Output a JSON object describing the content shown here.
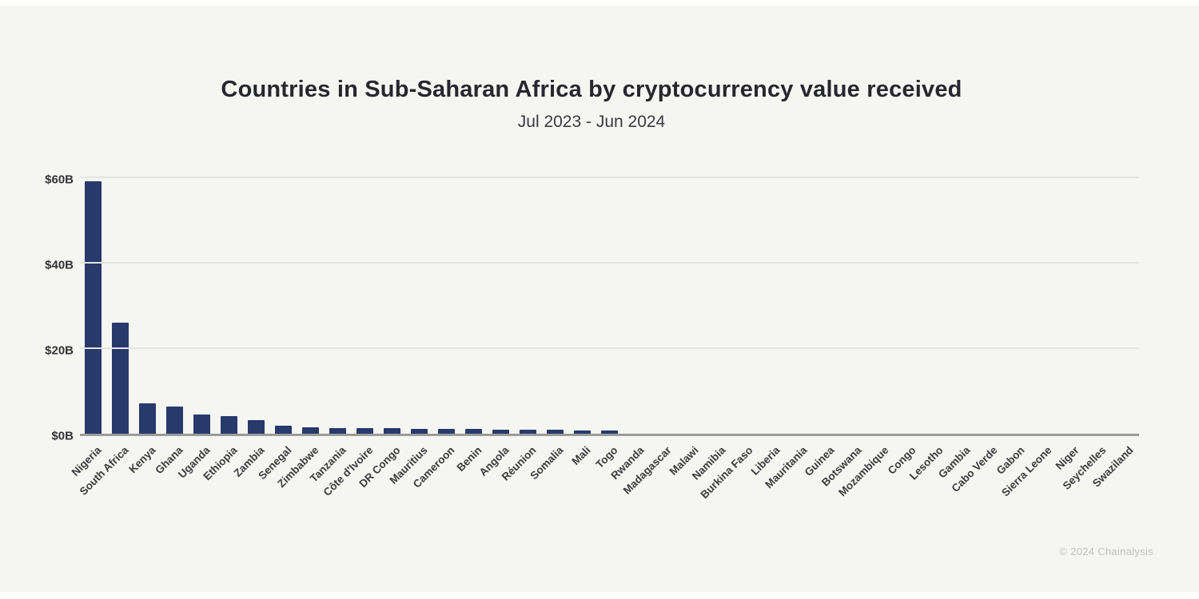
{
  "page": {
    "background": "#f5f5f2"
  },
  "header": {
    "title": "Countries in Sub-Saharan Africa by cryptocurrency value received",
    "subtitle": "Jul 2023 - Jun 2024"
  },
  "footer": {
    "credit": "© 2024 Chainalysis"
  },
  "chart_data": {
    "type": "bar",
    "title": "Countries in Sub-Saharan Africa by cryptocurrency value received",
    "subtitle": "Jul 2023 - Jun 2024",
    "xlabel": "",
    "ylabel": "",
    "unit": "USD billions received",
    "ylim": [
      0,
      60
    ],
    "grid": true,
    "legend": "none",
    "bar_color": "#28396c",
    "categories": [
      "Nigeria",
      "South Africa",
      "Kenya",
      "Ghana",
      "Uganda",
      "Ethiopia",
      "Zambia",
      "Senegal",
      "Zimbabwe",
      "Tanzania",
      "Côte d'Ivoire",
      "DR Congo",
      "Mauritius",
      "Cameroon",
      "Benin",
      "Angola",
      "Réunion",
      "Somalia",
      "Mali",
      "Togo",
      "Rwanda",
      "Madagascar",
      "Malawi",
      "Namibia",
      "Burkina Faso",
      "Liberia",
      "Mauritania",
      "Guinea",
      "Botswana",
      "Mozambique",
      "Congo",
      "Lesotho",
      "Gambia",
      "Cabo Verde",
      "Gabon",
      "Sierra Leone",
      "Niger",
      "Seychelles",
      "Swaziland"
    ],
    "values": [
      59,
      26,
      7.1,
      6.3,
      4.4,
      4.2,
      3.1,
      1.9,
      1.5,
      1.4,
      1.4,
      1.3,
      1.2,
      1.1,
      1.1,
      1.0,
      1.0,
      0.9,
      0.8,
      0.7,
      0.2,
      0.2,
      0.15,
      0.15,
      0.12,
      0.1,
      0.1,
      0.1,
      0.1,
      0.1,
      0.08,
      0.08,
      0.07,
      0.06,
      0.06,
      0.05,
      0.05,
      0.04,
      0.03
    ],
    "yticks": [
      {
        "value": 0,
        "label": "$0B"
      },
      {
        "value": 20,
        "label": "$20B"
      },
      {
        "value": 40,
        "label": "$40B"
      },
      {
        "value": 60,
        "label": "$60B"
      }
    ]
  }
}
